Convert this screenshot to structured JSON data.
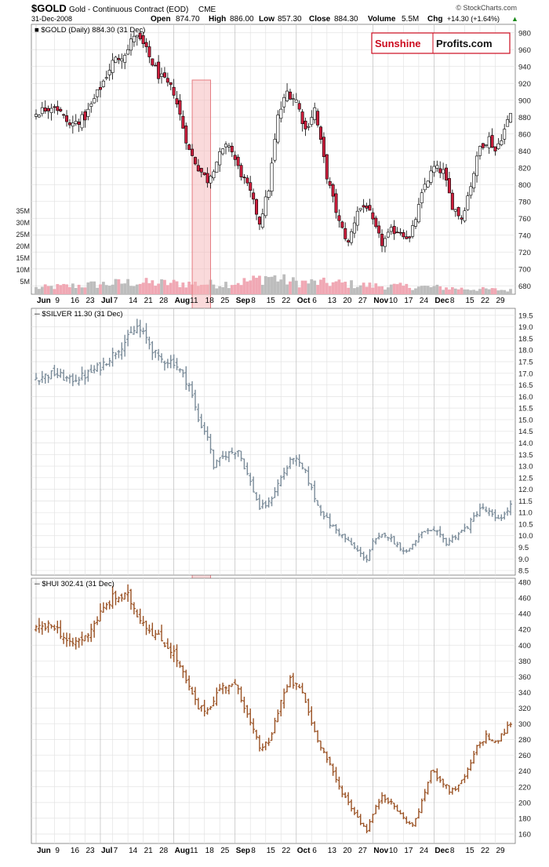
{
  "header": {
    "symbol": "$GOLD",
    "description": "Gold - Continuous Contract (EOD)",
    "exchange": "CME",
    "date": "31-Dec-2008",
    "open_label": "Open",
    "open": "874.70",
    "high_label": "High",
    "high": "886.00",
    "low_label": "Low",
    "low": "857.30",
    "close_label": "Close",
    "close": "884.30",
    "volume_label": "Volume",
    "volume": "5.5M",
    "chg_label": "Chg",
    "chg": "+14.30 (+1.64%)",
    "chg_arrow": "▲",
    "copyright": "© StockCharts.com"
  },
  "logo": {
    "part1": "Sunshine",
    "part2": "Profits.com"
  },
  "colors": {
    "up": "#ffffff",
    "down": "#cc1e3c",
    "candle_outline": "#000000",
    "vol_up": "#bdbdbd",
    "vol_down": "#f0a8b4",
    "silver": "#7a8b99",
    "hui": "#9a5224",
    "highlight_fill": "#f5b5b8",
    "highlight_stroke": "#e57c82",
    "grid": "#e3e3e3",
    "logo_red": "#cc0a1e"
  },
  "chart_data": [
    {
      "type": "candlestick",
      "title": "$GOLD (Daily) 884.30 (31 Dec)",
      "y_ticks": [
        680,
        700,
        720,
        740,
        760,
        780,
        800,
        820,
        840,
        860,
        880,
        900,
        920,
        940,
        960,
        980
      ],
      "ylim": [
        670,
        990
      ],
      "volume_ticks": [
        "5M",
        "10M",
        "15M",
        "20M",
        "25M",
        "30M",
        "35M"
      ],
      "volume_tick_values": [
        5,
        10,
        15,
        20,
        25,
        30,
        35
      ],
      "volume_ylim": [
        0,
        110
      ],
      "x_tick_labels": [
        "Jun",
        "9",
        "16",
        "23",
        "Jul",
        "7",
        "14",
        "21",
        "28",
        "Aug",
        "11",
        "18",
        "25",
        "Sep",
        "8",
        "15",
        "22",
        "Oct",
        "6",
        "13",
        "20",
        "27",
        "Nov",
        "10",
        "17",
        "24",
        "Dec",
        "8",
        "15",
        "22",
        "29"
      ],
      "x_tick_bold": [
        true,
        false,
        false,
        false,
        true,
        false,
        false,
        false,
        false,
        true,
        false,
        false,
        false,
        true,
        false,
        false,
        false,
        true,
        false,
        false,
        false,
        false,
        true,
        false,
        false,
        false,
        true,
        false,
        false,
        false,
        false
      ],
      "x_tick_day_index": [
        0,
        6,
        11,
        16,
        21,
        25,
        30,
        35,
        40,
        45,
        50,
        55,
        60,
        65,
        70,
        75,
        80,
        85,
        90,
        95,
        100,
        105,
        110,
        115,
        120,
        125,
        130,
        135,
        140,
        145,
        150
      ],
      "anchors": [
        [
          0,
          885
        ],
        [
          6,
          895
        ],
        [
          11,
          870
        ],
        [
          16,
          880
        ],
        [
          21,
          915
        ],
        [
          25,
          945
        ],
        [
          30,
          960
        ],
        [
          32,
          978
        ],
        [
          35,
          965
        ],
        [
          40,
          930
        ],
        [
          45,
          910
        ],
        [
          50,
          840
        ],
        [
          53,
          820
        ],
        [
          56,
          805
        ],
        [
          60,
          835
        ],
        [
          63,
          848
        ],
        [
          66,
          820
        ],
        [
          70,
          790
        ],
        [
          73,
          755
        ],
        [
          76,
          795
        ],
        [
          79,
          880
        ],
        [
          82,
          910
        ],
        [
          85,
          900
        ],
        [
          88,
          865
        ],
        [
          91,
          890
        ],
        [
          95,
          810
        ],
        [
          99,
          755
        ],
        [
          102,
          730
        ],
        [
          105,
          770
        ],
        [
          108,
          775
        ],
        [
          110,
          755
        ],
        [
          113,
          730
        ],
        [
          116,
          745
        ],
        [
          119,
          745
        ],
        [
          122,
          735
        ],
        [
          124,
          760
        ],
        [
          127,
          800
        ],
        [
          130,
          820
        ],
        [
          133,
          815
        ],
        [
          136,
          775
        ],
        [
          139,
          760
        ],
        [
          142,
          800
        ],
        [
          145,
          845
        ],
        [
          148,
          855
        ],
        [
          150,
          840
        ],
        [
          153,
          865
        ],
        [
          155,
          884
        ]
      ],
      "volume_anchors": [
        [
          0,
          8
        ],
        [
          30,
          15
        ],
        [
          45,
          14
        ],
        [
          60,
          13
        ],
        [
          70,
          17
        ],
        [
          76,
          23
        ],
        [
          83,
          16
        ],
        [
          90,
          15
        ],
        [
          100,
          14
        ],
        [
          105,
          12
        ],
        [
          110,
          11
        ],
        [
          120,
          10
        ],
        [
          130,
          9
        ],
        [
          140,
          7
        ],
        [
          150,
          6
        ],
        [
          155,
          5
        ]
      ]
    },
    {
      "type": "ohlc",
      "title": "$SILVER 11.30 (31 Dec)",
      "y_ticks": [
        8.5,
        9.0,
        9.5,
        10.0,
        10.5,
        11.0,
        11.5,
        12.0,
        12.5,
        13.0,
        13.5,
        14.0,
        14.5,
        15.0,
        15.5,
        16.0,
        16.5,
        17.0,
        17.5,
        18.0,
        18.5,
        19.0,
        19.5
      ],
      "ylim": [
        8.3,
        19.8
      ],
      "anchors": [
        [
          0,
          16.8
        ],
        [
          6,
          17.0
        ],
        [
          11,
          16.7
        ],
        [
          16,
          16.9
        ],
        [
          21,
          17.3
        ],
        [
          25,
          17.8
        ],
        [
          30,
          18.5
        ],
        [
          33,
          19.0
        ],
        [
          36,
          18.5
        ],
        [
          40,
          17.6
        ],
        [
          45,
          17.5
        ],
        [
          50,
          16.5
        ],
        [
          53,
          15.0
        ],
        [
          56,
          14.3
        ],
        [
          58,
          13.0
        ],
        [
          62,
          13.5
        ],
        [
          66,
          13.7
        ],
        [
          70,
          12.3
        ],
        [
          73,
          11.2
        ],
        [
          76,
          11.4
        ],
        [
          80,
          12.5
        ],
        [
          84,
          13.4
        ],
        [
          88,
          12.7
        ],
        [
          92,
          11.3
        ],
        [
          96,
          10.5
        ],
        [
          100,
          10.0
        ],
        [
          103,
          9.6
        ],
        [
          106,
          9.2
        ],
        [
          108,
          9.0
        ],
        [
          110,
          9.7
        ],
        [
          114,
          10.1
        ],
        [
          118,
          9.6
        ],
        [
          121,
          9.3
        ],
        [
          124,
          9.8
        ],
        [
          127,
          10.2
        ],
        [
          131,
          10.1
        ],
        [
          134,
          9.7
        ],
        [
          137,
          10.0
        ],
        [
          141,
          10.4
        ],
        [
          145,
          11.2
        ],
        [
          148,
          11.0
        ],
        [
          150,
          10.7
        ],
        [
          153,
          10.9
        ],
        [
          155,
          11.3
        ]
      ]
    },
    {
      "type": "ohlc",
      "title": "$HUI 302.41 (31 Dec)",
      "y_ticks": [
        160,
        180,
        200,
        220,
        240,
        260,
        280,
        300,
        320,
        340,
        360,
        380,
        400,
        420,
        440,
        460,
        480
      ],
      "ylim": [
        148,
        485
      ],
      "anchors": [
        [
          0,
          420
        ],
        [
          6,
          425
        ],
        [
          11,
          400
        ],
        [
          16,
          410
        ],
        [
          21,
          440
        ],
        [
          25,
          460
        ],
        [
          30,
          462
        ],
        [
          33,
          440
        ],
        [
          37,
          420
        ],
        [
          40,
          410
        ],
        [
          45,
          390
        ],
        [
          50,
          345
        ],
        [
          53,
          320
        ],
        [
          56,
          318
        ],
        [
          60,
          345
        ],
        [
          63,
          350
        ],
        [
          66,
          345
        ],
        [
          70,
          300
        ],
        [
          73,
          270
        ],
        [
          76,
          275
        ],
        [
          80,
          330
        ],
        [
          83,
          355
        ],
        [
          87,
          340
        ],
        [
          91,
          290
        ],
        [
          95,
          255
        ],
        [
          99,
          220
        ],
        [
          102,
          200
        ],
        [
          106,
          175
        ],
        [
          108,
          165
        ],
        [
          110,
          185
        ],
        [
          113,
          210
        ],
        [
          117,
          195
        ],
        [
          120,
          180
        ],
        [
          123,
          170
        ],
        [
          126,
          200
        ],
        [
          129,
          240
        ],
        [
          132,
          230
        ],
        [
          135,
          215
        ],
        [
          138,
          220
        ],
        [
          141,
          240
        ],
        [
          144,
          270
        ],
        [
          147,
          285
        ],
        [
          150,
          275
        ],
        [
          153,
          290
        ],
        [
          155,
          302
        ]
      ]
    }
  ]
}
